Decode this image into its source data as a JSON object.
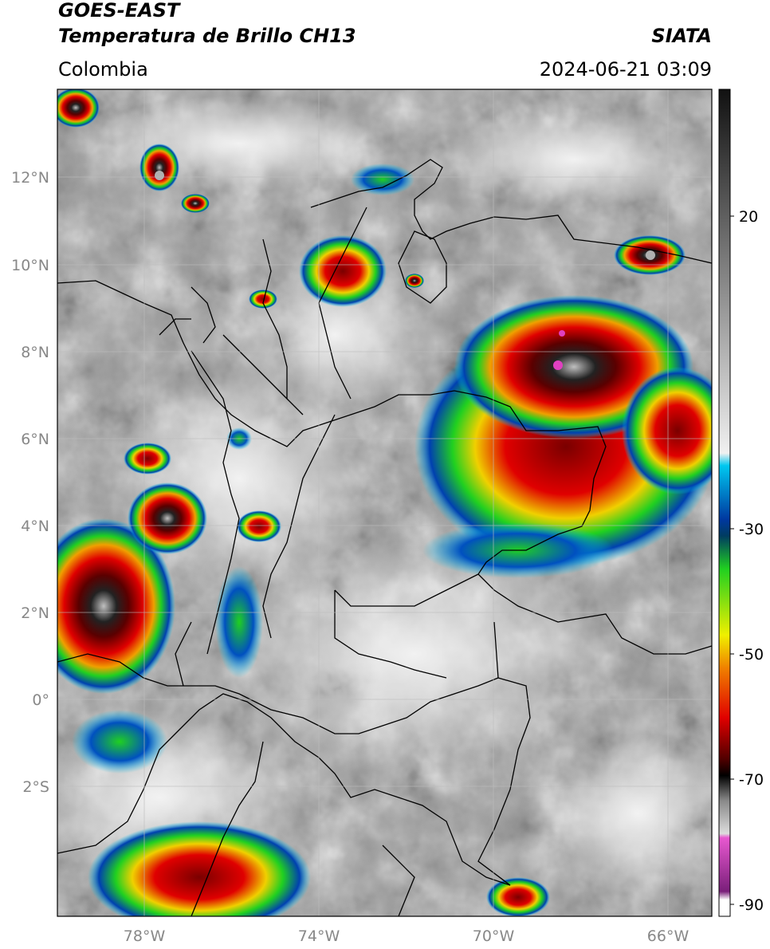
{
  "header": {
    "title_line1": "GOES-EAST",
    "title_line2": "Temperatura de Brillo CH13",
    "agency": "SIATA",
    "region": "Colombia",
    "timestamp": "2024-06-21 03:09"
  },
  "axes": {
    "lat_labels": [
      "12°N",
      "10°N",
      "8°N",
      "6°N",
      "4°N",
      "2°N",
      "0°",
      "2°S"
    ],
    "lon_labels": [
      "78°W",
      "74°W",
      "70°W",
      "66°W"
    ]
  },
  "colorbar": {
    "tick_labels": [
      "20",
      "-30",
      "-50",
      "-70",
      "-90"
    ],
    "colors": {
      "warm_gray_top": "#1a1a1a",
      "light": "#f0f0f0",
      "cyan": "#00c8f0",
      "blue": "#0038a0",
      "green": "#20d020",
      "yellow": "#f0f000",
      "red": "#e00000",
      "dark_red": "#500000",
      "black": "#000000",
      "magenta": "#e040c0",
      "purple": "#7a1f7a"
    }
  },
  "map_colors": {
    "background_gray": "#9a9a9a",
    "cloud_light": "#e6e6e6",
    "border": "#000000",
    "grid": "#bdbdbd"
  }
}
